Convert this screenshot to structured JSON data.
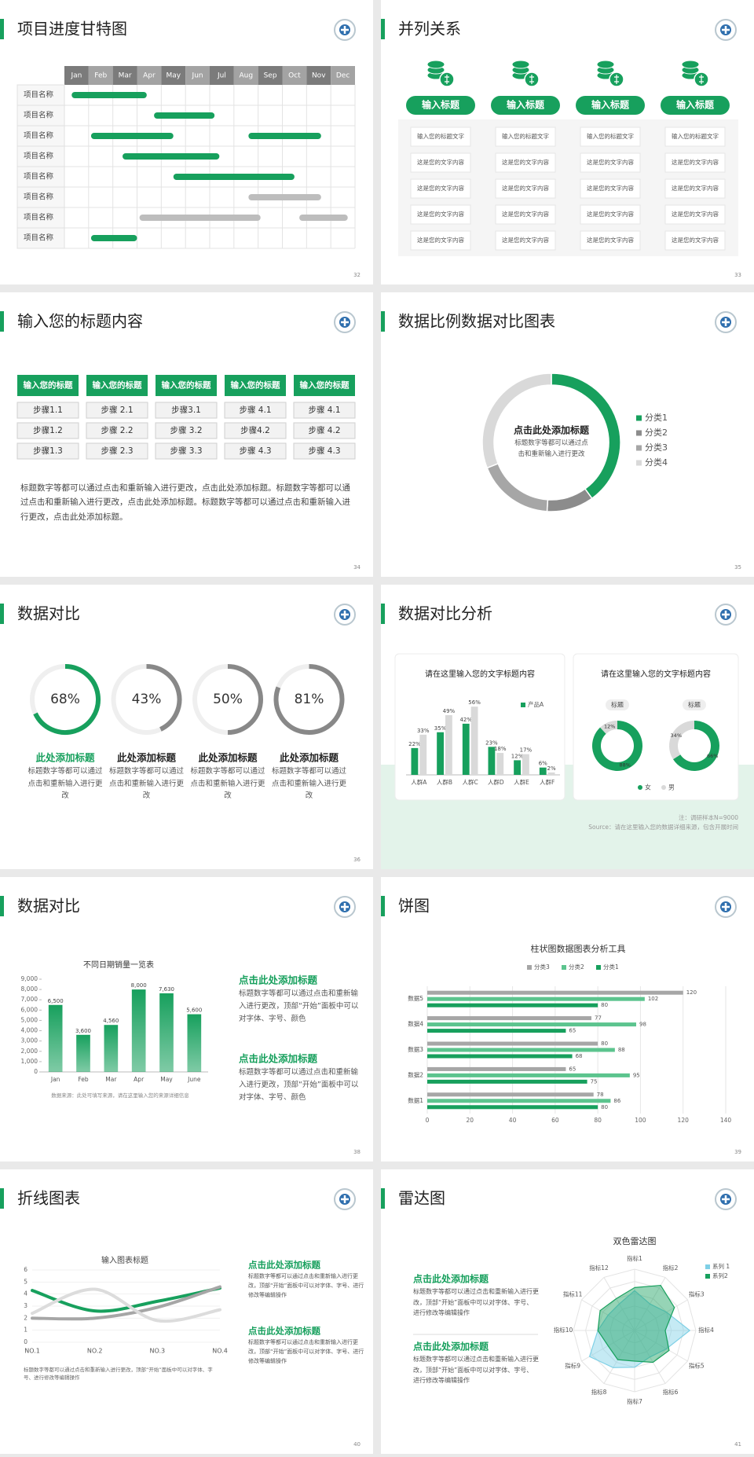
{
  "slides": [
    {
      "title": "项目进度甘特图",
      "page": "32",
      "months": [
        "Jan",
        "Feb",
        "Mar",
        "Apr",
        "May",
        "Jun",
        "Jul",
        "Aug",
        "Sep",
        "Oct",
        "Nov",
        "Dec"
      ],
      "rows": [
        {
          "label": "项目名称",
          "bars": [
            {
              "start": 0.3,
              "end": 3.4,
              "color": "#17a05d"
            }
          ]
        },
        {
          "label": "项目名称",
          "bars": [
            {
              "start": 3.7,
              "end": 6.2,
              "color": "#17a05d"
            }
          ]
        },
        {
          "label": "项目名称",
          "bars": [
            {
              "start": 1.1,
              "end": 4.5,
              "color": "#17a05d"
            },
            {
              "start": 7.6,
              "end": 10.6,
              "color": "#17a05d"
            }
          ]
        },
        {
          "label": "项目名称",
          "bars": [
            {
              "start": 2.4,
              "end": 6.4,
              "color": "#17a05d"
            }
          ]
        },
        {
          "label": "项目名称",
          "bars": [
            {
              "start": 4.5,
              "end": 9.5,
              "color": "#17a05d"
            }
          ]
        },
        {
          "label": "项目名称",
          "bars": [
            {
              "start": 7.6,
              "end": 10.6,
              "color": "#bdbdbd"
            }
          ]
        },
        {
          "label": "项目名称",
          "bars": [
            {
              "start": 3.1,
              "end": 8.1,
              "color": "#bdbdbd"
            },
            {
              "start": 9.7,
              "end": 11.7,
              "color": "#bdbdbd"
            }
          ]
        },
        {
          "label": "项目名称",
          "bars": [
            {
              "start": 1.1,
              "end": 3.0,
              "color": "#17a05d"
            }
          ]
        }
      ]
    },
    {
      "title": "并列关系",
      "page": "33",
      "columns": [
        {
          "heading": "输入标题",
          "items": [
            "输入您的标题文字",
            "这是您的文字内容",
            "这是您的文字内容",
            "这是您的文字内容",
            "这是您的文字内容"
          ]
        },
        {
          "heading": "输入标题",
          "items": [
            "输入您的标题文字",
            "这是您的文字内容",
            "这是您的文字内容",
            "这是您的文字内容",
            "这是您的文字内容"
          ]
        },
        {
          "heading": "输入标题",
          "items": [
            "输入您的标题文字",
            "这是您的文字内容",
            "这是您的文字内容",
            "这是您的文字内容",
            "这是您的文字内容"
          ]
        },
        {
          "heading": "输入标题",
          "items": [
            "输入您的标题文字",
            "这是您的文字内容",
            "这是您的文字内容",
            "这是您的文字内容",
            "这是您的文字内容"
          ]
        }
      ]
    },
    {
      "title": "输入您的标题内容",
      "page": "34",
      "columns": [
        {
          "heading": "输入您的标题",
          "steps": [
            "步骤1.1",
            "步骤1.2",
            "步骤1.3"
          ]
        },
        {
          "heading": "输入您的标题",
          "steps": [
            "步骤 2.1",
            "步骤 2.2",
            "步骤 2.3"
          ]
        },
        {
          "heading": "输入您的标题",
          "steps": [
            "步骤3.1",
            "步骤 3.2",
            "步骤 3.3"
          ]
        },
        {
          "heading": "输入您的标题",
          "steps": [
            "步骤 4.1",
            "步骤4.2",
            "步骤 4.3"
          ]
        },
        {
          "heading": "输入您的标题",
          "steps": [
            "步骤 4.1",
            "步骤 4.2",
            "步骤 4.3"
          ]
        }
      ],
      "body": "标题数字等都可以通过点击和重新输入进行更改，点击此处添加标题。标题数字等都可以通过点击和重新输入进行更改，点击此处添加标题。标题数字等都可以通过点击和重新输入进行更改，点击此处添加标题。"
    },
    {
      "title": "数据比例数据对比图表",
      "page": "35",
      "center_title": "点击此处添加标题",
      "center_text": "标题数字等都可以通过点击和重新输入进行更改",
      "chart": {
        "type": "donut",
        "categories": [
          "分类1",
          "分类2",
          "分类3",
          "分类4"
        ],
        "values": [
          40,
          11,
          18,
          31
        ],
        "colors": [
          "#17a05d",
          "#8c8c8c",
          "#a6a6a6",
          "#d9d9d9"
        ]
      }
    },
    {
      "title": "数据对比",
      "page": "36",
      "rings": {
        "values": [
          68,
          43,
          50,
          81
        ],
        "value_labels": [
          "68%",
          "43%",
          "50%",
          "81%"
        ],
        "rlim": [
          0,
          100
        ],
        "colors": [
          "#17a05d",
          "#888888",
          "#888888",
          "#888888"
        ]
      },
      "items": [
        {
          "heading": "此处添加标题",
          "text": "标题数字等都可以通过点击和重新输入进行更改"
        },
        {
          "heading": "此处添加标题",
          "text": "标题数字等都可以通过点击和重新输入进行更改"
        },
        {
          "heading": "此处添加标题",
          "text": "标题数字等都可以通过点击和重新输入进行更改"
        },
        {
          "heading": "此处添加标题",
          "text": "标题数字等都可以通过点击和重新输入进行更改"
        }
      ]
    },
    {
      "title": "数据对比分析",
      "page": "37",
      "bar_card": {
        "title": "请在这里输入您的文字标题内容",
        "chart": {
          "type": "bar",
          "categories": [
            "人群A",
            "人群B",
            "人群C",
            "人群D",
            "人群E",
            "人群F"
          ],
          "ylim": [
            0,
            60
          ],
          "series": [
            {
              "name": "产品A",
              "color": "#17a05d",
              "values": [
                22,
                35,
                42,
                23,
                12,
                6
              ],
              "value_labels": [
                "22%",
                "35%",
                "42%",
                "23%",
                "12%",
                "6%"
              ]
            },
            {
              "color": "#d9d9d9",
              "values": [
                33,
                49,
                56,
                18,
                17,
                2
              ],
              "value_labels": [
                "33%",
                "49%",
                "56%",
                "18%",
                "17%",
                "2%"
              ]
            }
          ]
        }
      },
      "donut_card": {
        "title": "请在这里输入您的文字标题内容",
        "legend": [
          "女",
          "男"
        ],
        "colors": [
          "#17a05d",
          "#d9d9d9"
        ],
        "donuts": [
          {
            "label": "标题",
            "values": [
              88,
              12
            ],
            "value_labels": [
              "88%",
              "12%"
            ]
          },
          {
            "label": "标题",
            "values": [
              66,
              34
            ],
            "value_labels": [
              "66%",
              "34%"
            ]
          }
        ]
      },
      "notes": [
        "注：调研样本N=9000",
        "Source：请在这里输入您的数据详细来源，包含开展时间"
      ]
    },
    {
      "title": "数据对比",
      "page": "38",
      "chart": {
        "type": "bar",
        "title": "不同日期销量一览表",
        "categories": [
          "Jan",
          "Feb",
          "Mar",
          "Apr",
          "May",
          "June"
        ],
        "values": [
          6500,
          3600,
          4560,
          8000,
          7630,
          5600
        ],
        "value_labels": [
          "6,500",
          "3,600",
          "4,560",
          "8,000",
          "7,630",
          "5,600"
        ],
        "color": "#17a05d",
        "ylim": [
          0,
          9000
        ],
        "yticks": [
          0,
          {
            "value": 1000,
            "label": "1,000"
          },
          {
            "value": 2000,
            "label": "2,000"
          },
          {
            "value": 3000,
            "label": "3,000"
          },
          {
            "value": 4000,
            "label": "4,000"
          },
          {
            "value": 5000,
            "label": "5,000"
          },
          {
            "value": 6000,
            "label": "6,000"
          },
          {
            "value": 7000,
            "label": "7,000"
          },
          {
            "value": 8000,
            "label": "8,000"
          },
          {
            "value": 9000,
            "label": "9,000"
          }
        ]
      },
      "note": "数据来源：此处可填写来源，请在这里输入您的来源详细信息",
      "texts": [
        {
          "heading": "点击此处添加标题",
          "text": "标题数字等都可以通过点击和重新输入进行更改，顶部“开始”面板中可以对字体、字号、颜色"
        },
        {
          "heading": "点击此处添加标题",
          "text": "标题数字等都可以通过点击和重新输入进行更改，顶部“开始”面板中可以对字体、字号、颜色"
        }
      ]
    },
    {
      "title": "饼图",
      "page": "39",
      "chart": {
        "type": "hbar",
        "title": "柱状图数据图表分析工具",
        "categories": [
          "数据1",
          "数据2",
          "数据3",
          "数据4",
          "数据5"
        ],
        "xlim": [
          0,
          140
        ],
        "xticks": [
          0,
          20,
          40,
          60,
          80,
          100,
          120,
          140
        ],
        "grid": true,
        "series": [
          {
            "name": "分类3",
            "color": "#a6a6a6",
            "values": [
              78,
              65,
              80,
              77,
              120
            ]
          },
          {
            "name": "分类2",
            "color": "#5cc48e",
            "values": [
              86,
              95,
              88,
              98,
              102
            ]
          },
          {
            "name": "分类1",
            "color": "#17a05d",
            "values": [
              80,
              75,
              68,
              65,
              80
            ]
          }
        ]
      }
    },
    {
      "title": "折线图表",
      "page": "40",
      "chart": {
        "type": "line",
        "title": "输入图表标题",
        "categories": [
          "NO.1",
          "NO.2",
          "NO.3",
          "NO.4"
        ],
        "ylim": [
          0,
          6
        ],
        "yticks": [
          0,
          1,
          2,
          3,
          4,
          5,
          6
        ],
        "series": [
          {
            "color": "#17a05d",
            "values": [
              4.3,
              2.6,
              3.4,
              4.5
            ]
          },
          {
            "color": "#a6a6a6",
            "values": [
              2.0,
              2.0,
              2.9,
              4.6
            ]
          },
          {
            "color": "#dcdcdc",
            "values": [
              2.4,
              4.4,
              1.8,
              2.7
            ]
          }
        ]
      },
      "texts": [
        {
          "heading": "点击此处添加标题",
          "text": "标题数字等都可以通过点击和重新输入进行更改，顶部“开始”面板中可以对字体、字号、进行修改等编辑操作"
        },
        {
          "heading": "点击此处添加标题",
          "text": "标题数字等都可以通过点击和重新输入进行更改，顶部“开始”面板中可以对字体、字号、进行修改等编辑操作"
        }
      ],
      "note": "标题数字等都可以通过点击和重新输入进行更改，顶部“开始”面板中可以对字体、字号、进行修改等编辑操作"
    },
    {
      "title": "雷达图",
      "page": "41",
      "chart": {
        "type": "radar",
        "title": "双色雷达图",
        "categories": [
          "指标1",
          "指标2",
          "指标3",
          "指标4",
          "指标5",
          "指标6",
          "指标7",
          "指标8",
          "指标9",
          "指标10",
          "指标11",
          "指标12"
        ],
        "rlim": [
          0,
          10
        ],
        "series": [
          {
            "name": "系列 1",
            "color": "#7fd0e6",
            "values": [
              6.5,
              5,
              6,
              9,
              6,
              5,
              6,
              7,
              8.5,
              6,
              5,
              5
            ]
          },
          {
            "name": "系列2",
            "color": "#17a05d",
            "values": [
              7,
              8.5,
              7.5,
              5,
              6.5,
              6,
              5,
              5.5,
              5,
              6,
              6.5,
              6
            ]
          }
        ]
      },
      "texts": [
        {
          "heading": "点击此处添加标题",
          "text": "标题数字等都可以通过点击和重新输入进行更改，顶部“开始”面板中可以对字体、字号、进行修改等编辑操作"
        },
        {
          "heading": "点击此处添加标题",
          "text": "标题数字等都可以通过点击和重新输入进行更改，顶部“开始”面板中可以对字体、字号、进行修改等编辑操作"
        }
      ]
    }
  ]
}
